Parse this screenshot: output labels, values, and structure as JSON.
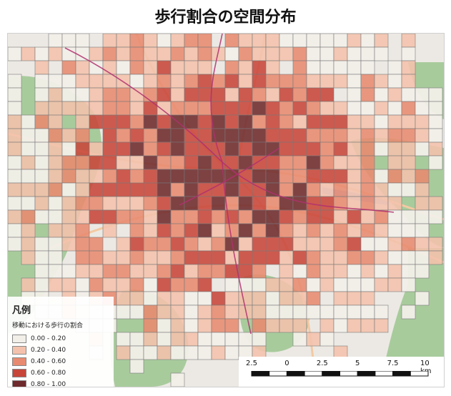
{
  "title": "歩行割合の空間分布",
  "legend": {
    "title": "凡例",
    "subtitle": "移動における歩行の割合",
    "classes": [
      {
        "label": "0.00 - 0.20",
        "color": "#f2efe9"
      },
      {
        "label": "0.20 - 0.40",
        "color": "#f4c2ac"
      },
      {
        "label": "0.40 - 0.60",
        "color": "#e88a70"
      },
      {
        "label": "0.60 - 0.80",
        "color": "#c8453a"
      },
      {
        "label": "0.80 - 1.00",
        "color": "#6e2a2c"
      }
    ]
  },
  "scale_bar": {
    "labels": [
      "2.5",
      "0",
      "2.5",
      "5",
      "7.5",
      "10 km"
    ]
  },
  "basemap_colors": {
    "land": "#ece9e4",
    "forest": "#9cc58f",
    "water": "#a9c4e8",
    "road": "#f3c9a2",
    "rail": "#b0306e"
  }
}
